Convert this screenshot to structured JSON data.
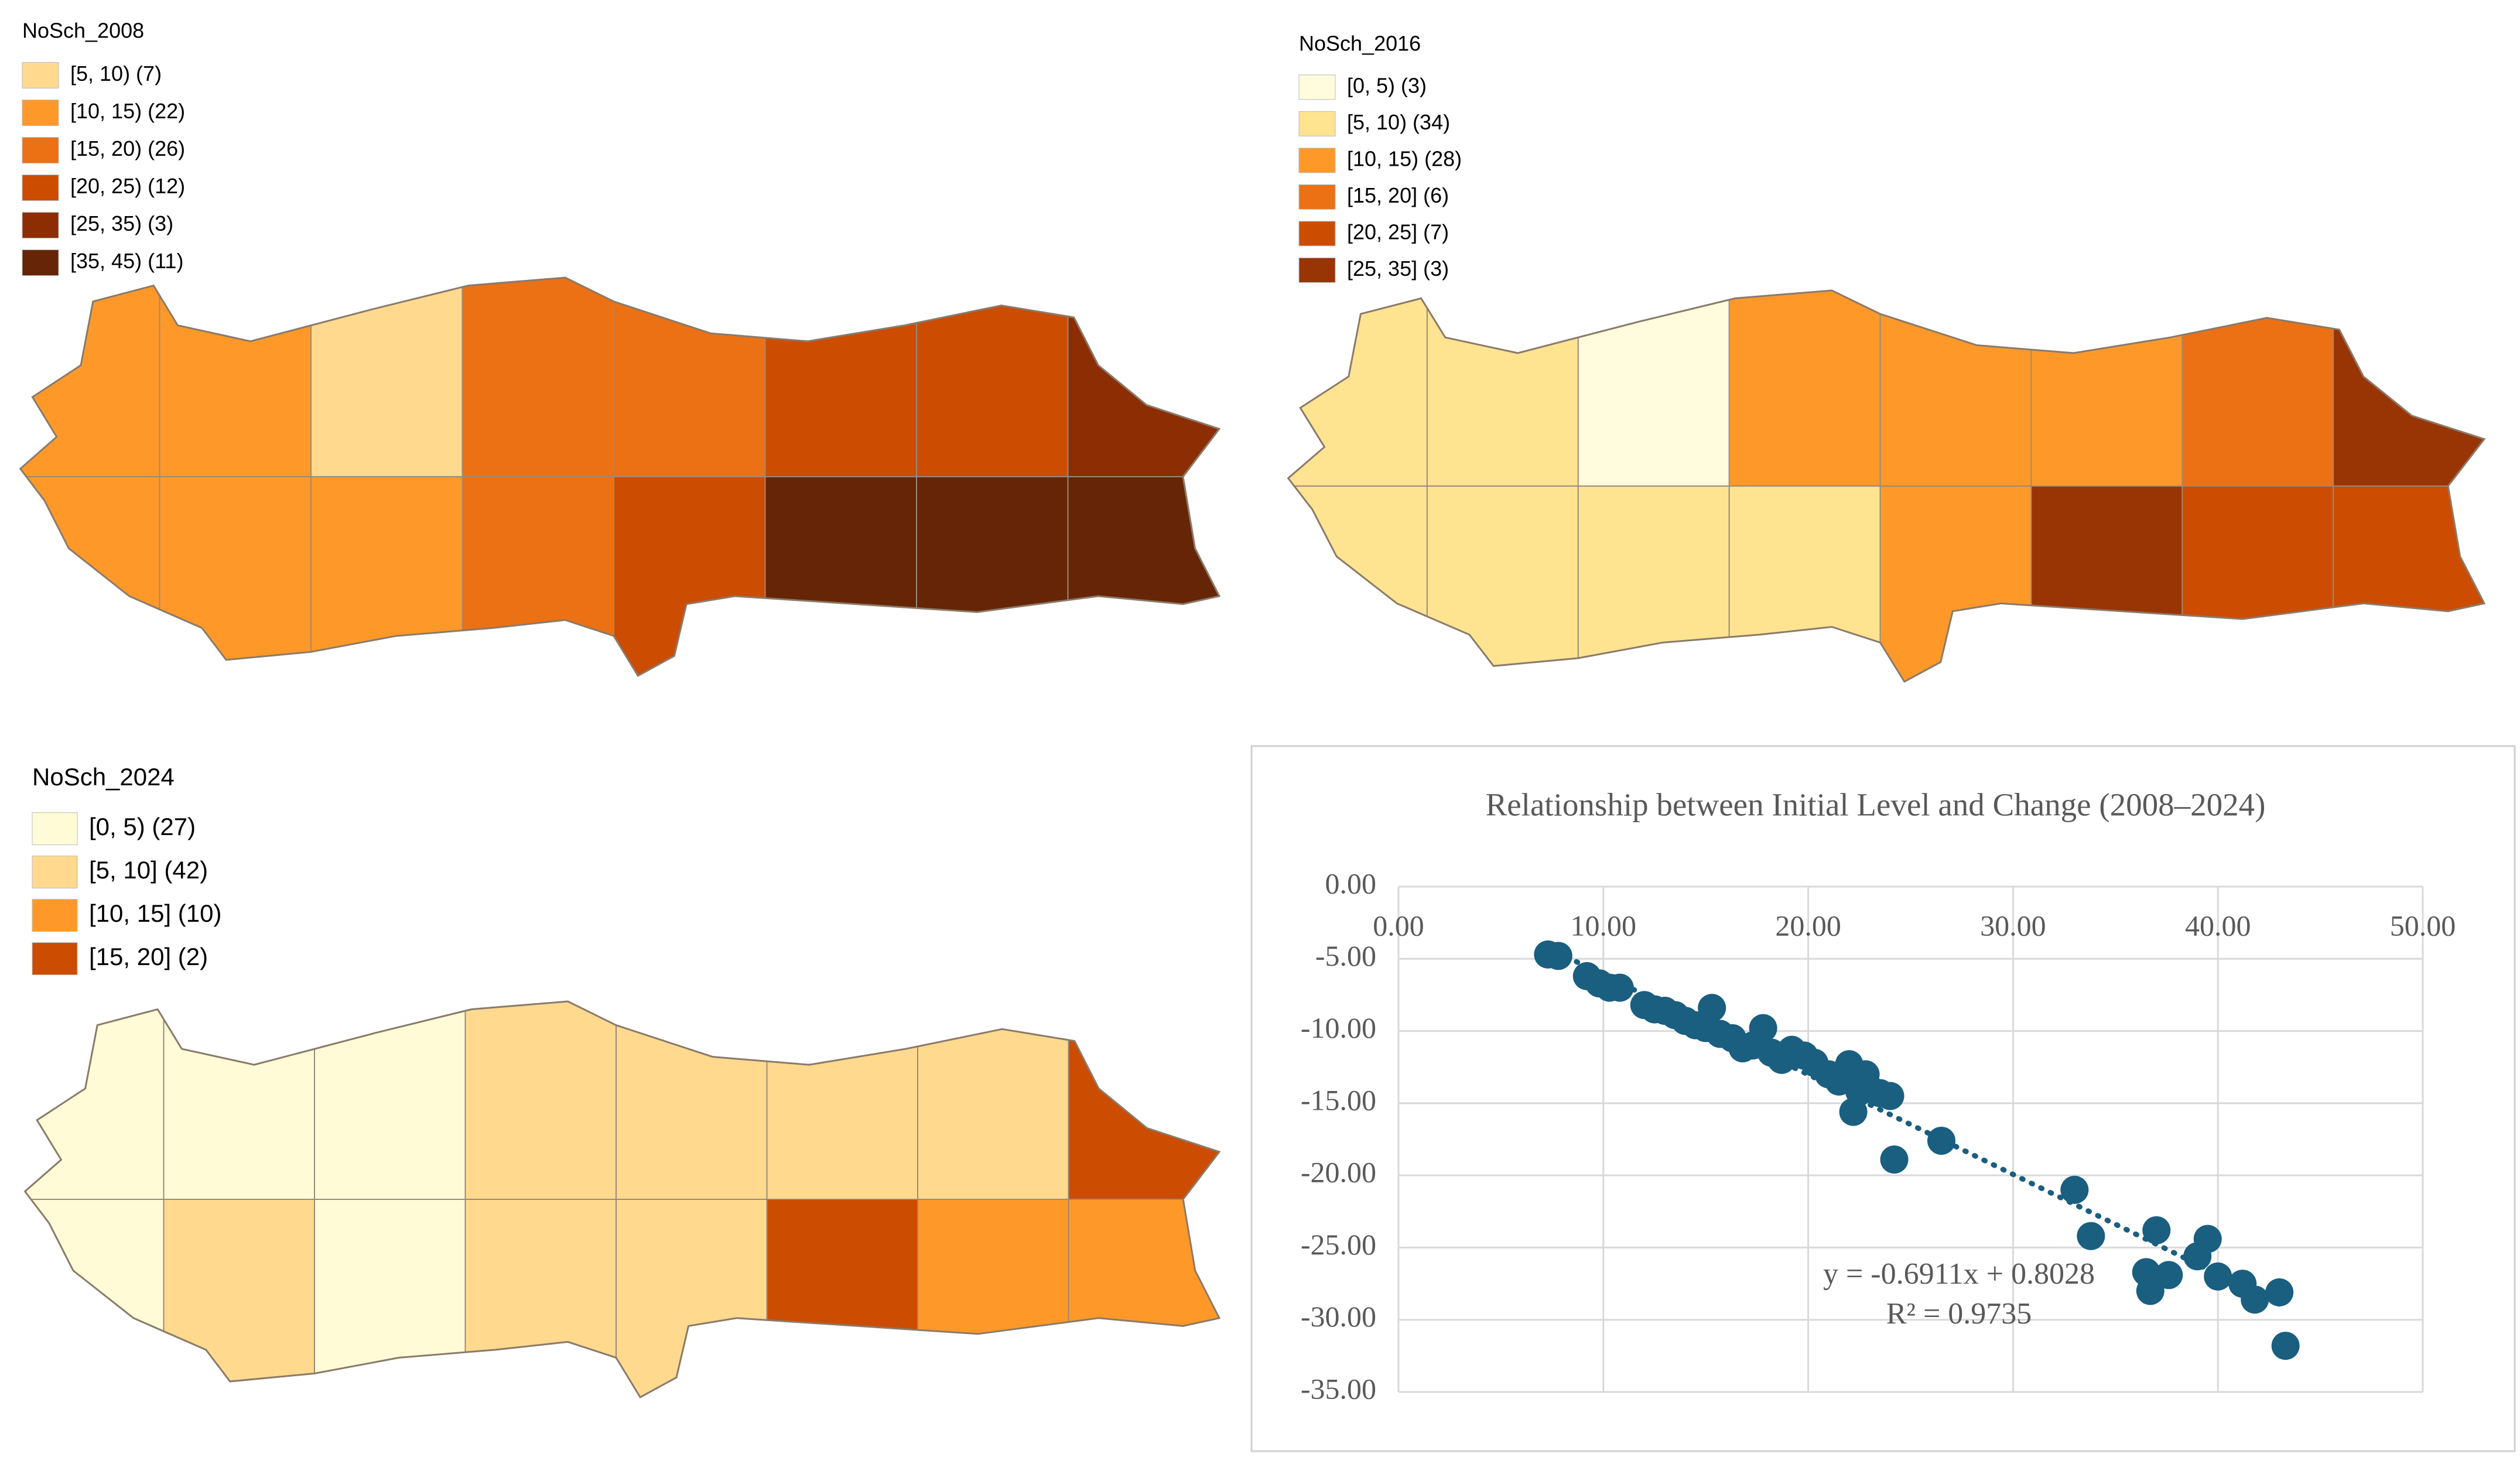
{
  "chart_data": [
    {
      "type": "choropleth",
      "title": "NoSch_2008",
      "legend": [
        {
          "label": "[5, 10) (7)",
          "color": "#fed98e"
        },
        {
          "label": "[10, 15) (22)",
          "color": "#fe9929"
        },
        {
          "label": "[15, 20) (26)",
          "color": "#ec7014"
        },
        {
          "label": "[20, 25) (12)",
          "color": "#cc4c02"
        },
        {
          "label": "[25, 35) (3)",
          "color": "#8c2d04"
        },
        {
          "label": "[35, 45) (11)",
          "color": "#662506"
        }
      ]
    },
    {
      "type": "choropleth",
      "title": "NoSch_2016",
      "legend": [
        {
          "label": "[0, 5) (3)",
          "color": "#fffbdc"
        },
        {
          "label": "[5, 10) (34)",
          "color": "#fee391"
        },
        {
          "label": "[10, 15) (28)",
          "color": "#fe9929"
        },
        {
          "label": "[15, 20] (6)",
          "color": "#ec7014"
        },
        {
          "label": "[20, 25] (7)",
          "color": "#cc4c02"
        },
        {
          "label": "[25, 35] (3)",
          "color": "#993404"
        }
      ]
    },
    {
      "type": "choropleth",
      "title": "NoSch_2024",
      "legend": [
        {
          "label": "[0, 5) (27)",
          "color": "#fffbd6"
        },
        {
          "label": "[5, 10] (42)",
          "color": "#fed98e"
        },
        {
          "label": "[10, 15] (10)",
          "color": "#fe9929"
        },
        {
          "label": "[15, 20] (2)",
          "color": "#cc4c02"
        }
      ]
    },
    {
      "type": "scatter",
      "title": "Relationship between Initial Level and Change (2008–2024)",
      "x": [
        7.3,
        7.8,
        9.2,
        9.8,
        10.3,
        10.8,
        12.0,
        12.5,
        13.0,
        13.5,
        14.0,
        14.5,
        15.0,
        15.3,
        15.7,
        16.3,
        16.8,
        17.3,
        17.8,
        18.2,
        18.7,
        19.2,
        19.8,
        20.3,
        21.0,
        21.5,
        22.0,
        22.2,
        22.5,
        22.8,
        23.0,
        23.5,
        24.0,
        24.2,
        26.5,
        33.0,
        33.8,
        36.5,
        36.7,
        37.0,
        37.6,
        39.0,
        39.5,
        40.0,
        41.2,
        41.8,
        43.0,
        43.3
      ],
      "values": [
        -4.7,
        -4.8,
        -6.2,
        -6.7,
        -7.0,
        -7.0,
        -8.2,
        -8.5,
        -8.6,
        -8.9,
        -9.3,
        -9.6,
        -9.8,
        -8.4,
        -10.2,
        -10.5,
        -11.2,
        -11.0,
        -9.8,
        -11.5,
        -12.0,
        -11.3,
        -11.7,
        -12.2,
        -13.0,
        -13.5,
        -12.3,
        -15.6,
        -14.2,
        -13.0,
        -14.0,
        -14.3,
        -14.5,
        -18.9,
        -17.6,
        -21.0,
        -24.2,
        -26.7,
        -28.0,
        -23.8,
        -26.9,
        -25.6,
        -24.4,
        -27.0,
        -27.5,
        -28.6,
        -28.1,
        -31.8
      ],
      "color": "#1a5e80",
      "trendline": {
        "slope": -0.6911,
        "intercept": 0.8028,
        "equation": "y = -0.6911x + 0.8028",
        "r2": "R² = 0.9735"
      },
      "xlim": [
        0,
        50
      ],
      "ylim": [
        -35,
        0
      ],
      "xticks": [
        {
          "value": 0,
          "label": "0.00"
        },
        {
          "value": 10,
          "label": "10.00"
        },
        {
          "value": 20,
          "label": "20.00"
        },
        {
          "value": 30,
          "label": "30.00"
        },
        {
          "value": 40,
          "label": "40.00"
        },
        {
          "value": 50,
          "label": "50.00"
        }
      ],
      "yticks": [
        {
          "value": 0,
          "label": "0.00"
        },
        {
          "value": -5,
          "label": "-5.00"
        },
        {
          "value": -10,
          "label": "-10.00"
        },
        {
          "value": -15,
          "label": "-15.00"
        },
        {
          "value": -20,
          "label": "-20.00"
        },
        {
          "value": -25,
          "label": "-25.00"
        },
        {
          "value": -30,
          "label": "-30.00"
        },
        {
          "value": -35,
          "label": "-35.00"
        }
      ],
      "grid": true
    }
  ]
}
